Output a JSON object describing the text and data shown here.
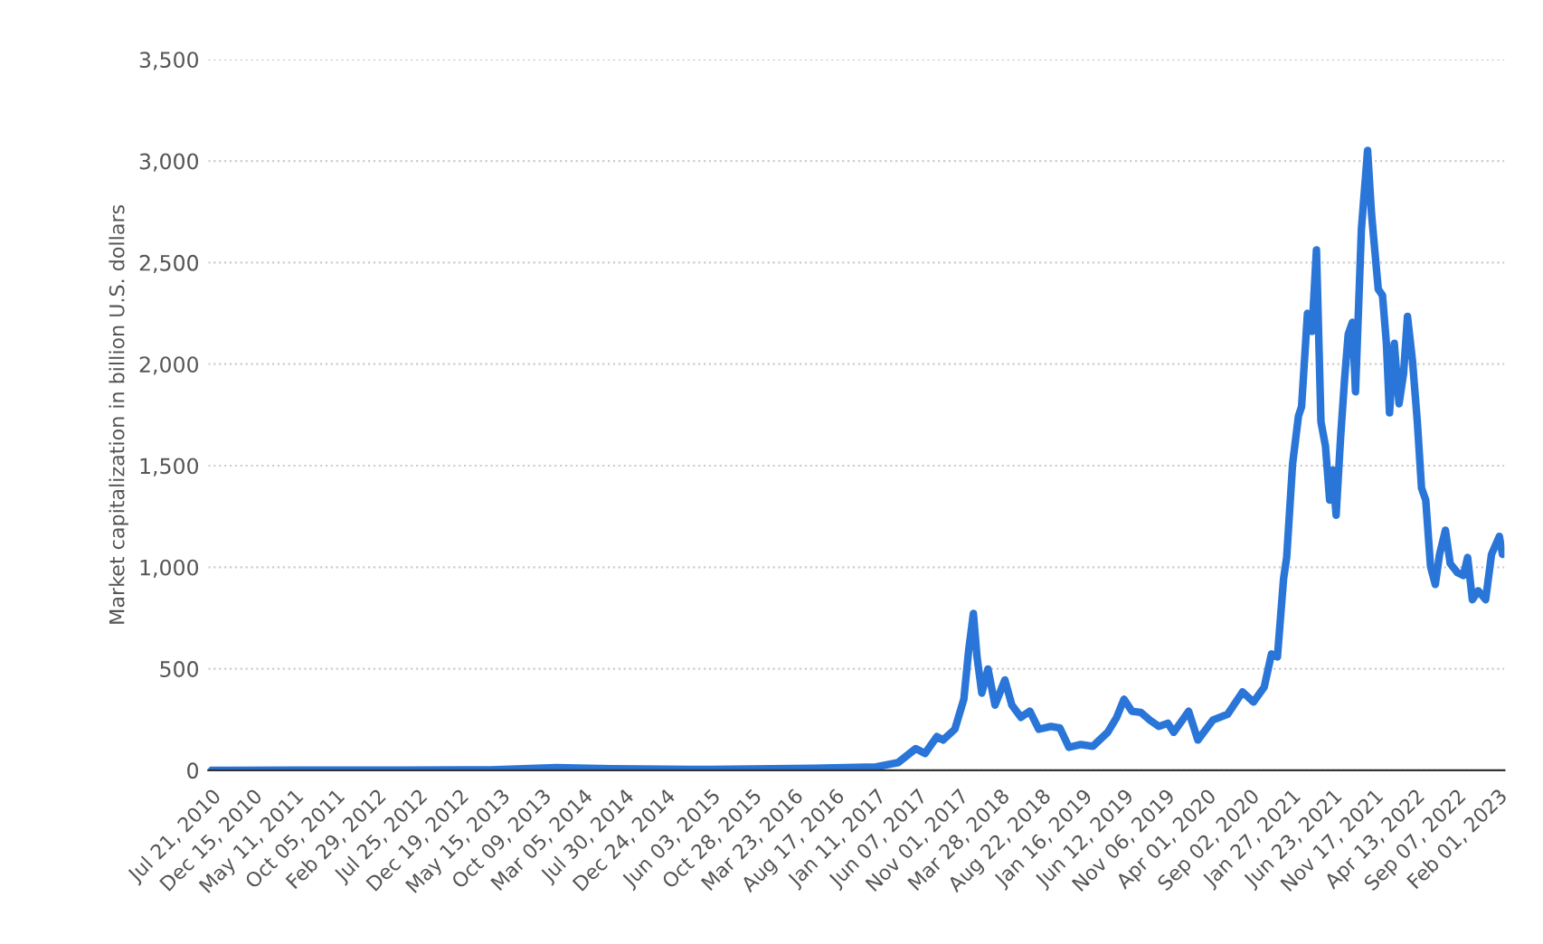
{
  "chart_data": {
    "type": "line",
    "ylabel": "Market capitalization in billion U.S. dollars",
    "x": [
      "2010-07-21",
      "2011-06-01",
      "2012-06-01",
      "2013-04-10",
      "2013-11-30",
      "2014-06-15",
      "2015-06-01",
      "2016-06-01",
      "2017-01-11",
      "2017-03-30",
      "2017-06-01",
      "2017-07-04",
      "2017-08-15",
      "2017-09-06",
      "2017-10-18",
      "2017-11-19",
      "2017-12-06",
      "2017-12-23",
      "2018-01-05",
      "2018-01-22",
      "2018-02-13",
      "2018-03-10",
      "2018-04-14",
      "2018-05-09",
      "2018-06-10",
      "2018-07-12",
      "2018-08-13",
      "2018-09-25",
      "2018-10-27",
      "2018-11-28",
      "2019-01-09",
      "2019-02-21",
      "2019-04-15",
      "2019-05-17",
      "2019-06-12",
      "2019-07-10",
      "2019-08-11",
      "2019-09-12",
      "2019-10-14",
      "2019-11-15",
      "2019-12-06",
      "2020-01-28",
      "2020-03-01",
      "2020-04-23",
      "2020-06-15",
      "2020-08-07",
      "2020-09-15",
      "2020-10-23",
      "2020-11-18",
      "2020-12-09",
      "2020-12-31",
      "2021-01-11",
      "2021-02-01",
      "2021-02-22",
      "2021-03-05",
      "2021-03-26",
      "2021-04-11",
      "2021-04-27",
      "2021-05-13",
      "2021-05-29",
      "2021-06-13",
      "2021-06-24",
      "2021-07-06",
      "2021-07-22",
      "2021-08-05",
      "2021-08-18",
      "2021-09-02",
      "2021-09-13",
      "2021-10-04",
      "2021-10-26",
      "2021-11-09",
      "2021-12-03",
      "2021-12-18",
      "2022-01-01",
      "2022-01-12",
      "2022-01-29",
      "2022-02-15",
      "2022-03-03",
      "2022-03-17",
      "2022-04-04",
      "2022-04-21",
      "2022-05-06",
      "2022-05-21",
      "2022-06-07",
      "2022-06-24",
      "2022-07-09",
      "2022-07-30",
      "2022-08-16",
      "2022-09-11",
      "2022-10-02",
      "2022-10-17",
      "2022-11-03",
      "2022-11-24",
      "2022-12-20",
      "2023-01-10",
      "2023-02-07",
      "2023-02-18"
    ],
    "series": [
      {
        "color": "#2a75d8",
        "values": [
          0,
          1,
          1,
          2,
          13,
          8,
          4,
          10,
          17,
          38,
          107,
          83,
          166,
          149,
          202,
          350,
          588,
          772,
          558,
          380,
          499,
          321,
          445,
          321,
          261,
          291,
          202,
          216,
          208,
          113,
          127,
          118,
          187,
          261,
          350,
          291,
          285,
          247,
          216,
          232,
          187,
          291,
          149,
          247,
          276,
          386,
          336,
          410,
          573,
          558,
          944,
          1048,
          1508,
          1745,
          1790,
          2250,
          2161,
          2562,
          1716,
          1597,
          1330,
          1478,
          1256,
          1641,
          1924,
          2146,
          2206,
          1864,
          2665,
          3052,
          2740,
          2369,
          2339,
          2102,
          1760,
          2102,
          1805,
          1953,
          2235,
          2013,
          1716,
          1389,
          1330,
          1004,
          915,
          1063,
          1182,
          1018,
          973,
          959,
          1048,
          840,
          884,
          840,
          1063,
          1152,
          1063
        ]
      }
    ],
    "xlim": [
      "2010-07-10",
      "2023-02-25"
    ],
    "xticks": [
      {
        "value": "2010-07-21",
        "label": "Jul 21, 2010"
      },
      {
        "value": "2010-12-15",
        "label": "Dec 15, 2010"
      },
      {
        "value": "2011-05-11",
        "label": "May 11, 2011"
      },
      {
        "value": "2011-10-05",
        "label": "Oct 05, 2011"
      },
      {
        "value": "2012-02-29",
        "label": "Feb 29, 2012"
      },
      {
        "value": "2012-07-25",
        "label": "Jul 25, 2012"
      },
      {
        "value": "2012-12-19",
        "label": "Dec 19, 2012"
      },
      {
        "value": "2013-05-15",
        "label": "May 15, 2013"
      },
      {
        "value": "2013-10-09",
        "label": "Oct 09, 2013"
      },
      {
        "value": "2014-03-05",
        "label": "Mar 05, 2014"
      },
      {
        "value": "2014-07-30",
        "label": "Jul 30, 2014"
      },
      {
        "value": "2014-12-24",
        "label": "Dec 24, 2014"
      },
      {
        "value": "2015-06-03",
        "label": "Jun 03, 2015"
      },
      {
        "value": "2015-10-28",
        "label": "Oct 28, 2015"
      },
      {
        "value": "2016-03-23",
        "label": "Mar 23, 2016"
      },
      {
        "value": "2016-08-17",
        "label": "Aug 17, 2016"
      },
      {
        "value": "2017-01-11",
        "label": "Jan 11, 2017"
      },
      {
        "value": "2017-06-07",
        "label": "Jun 07, 2017"
      },
      {
        "value": "2017-11-01",
        "label": "Nov 01, 2017"
      },
      {
        "value": "2018-03-28",
        "label": "Mar 28, 2018"
      },
      {
        "value": "2018-08-22",
        "label": "Aug 22, 2018"
      },
      {
        "value": "2019-01-16",
        "label": "Jan 16, 2019"
      },
      {
        "value": "2019-06-12",
        "label": "Jun 12, 2019"
      },
      {
        "value": "2019-11-06",
        "label": "Nov 06, 2019"
      },
      {
        "value": "2020-04-01",
        "label": "Apr 01, 2020"
      },
      {
        "value": "2020-09-02",
        "label": "Sep 02, 2020"
      },
      {
        "value": "2021-01-27",
        "label": "Jan 27, 2021"
      },
      {
        "value": "2021-06-23",
        "label": "Jun 23, 2021"
      },
      {
        "value": "2021-11-17",
        "label": "Nov 17, 2021"
      },
      {
        "value": "2022-04-13",
        "label": "Apr 13, 2022"
      },
      {
        "value": "2022-09-07",
        "label": "Sep 07, 2022"
      },
      {
        "value": "2023-02-01",
        "label": "Feb 01, 2023"
      }
    ],
    "ylim": [
      0,
      3500
    ],
    "yticks": [
      {
        "value": 0,
        "label": "0"
      },
      {
        "value": 500,
        "label": "500"
      },
      {
        "value": 1000,
        "label": "1,000"
      },
      {
        "value": 1500,
        "label": "1,500"
      },
      {
        "value": 2000,
        "label": "2,000"
      },
      {
        "value": 2500,
        "label": "2,500"
      },
      {
        "value": 3000,
        "label": "3,000"
      },
      {
        "value": 3500,
        "label": "3,500"
      }
    ],
    "grid": "y",
    "line_style": "solid"
  }
}
